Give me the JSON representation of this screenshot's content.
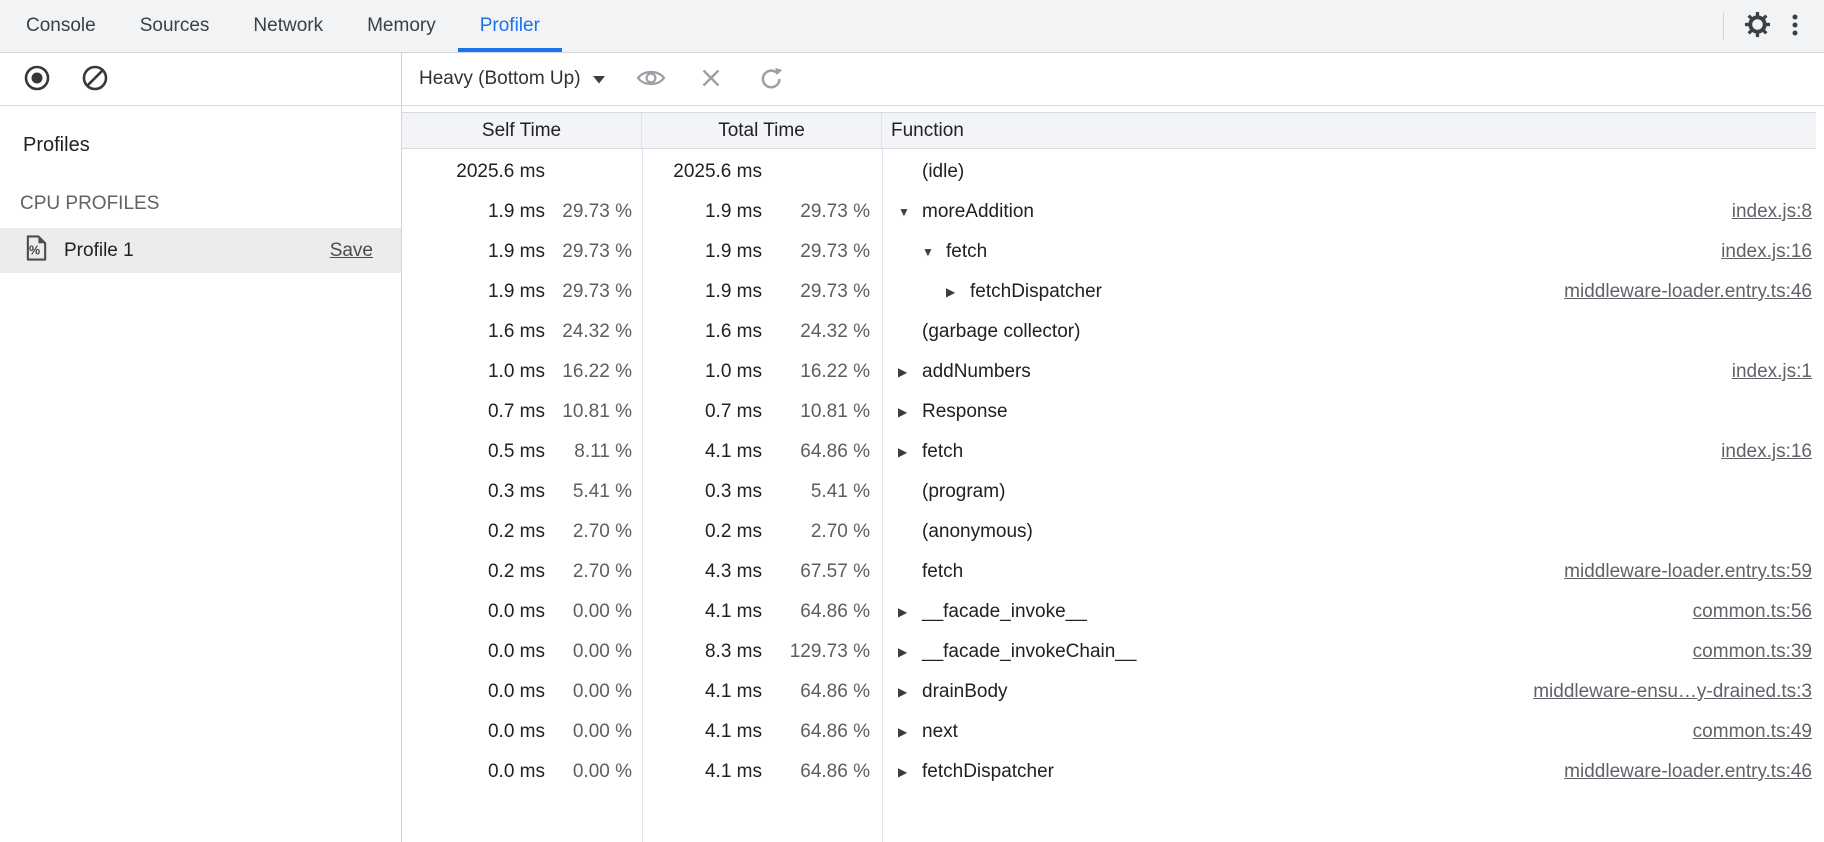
{
  "colors": {
    "accent": "#1a73e8",
    "tabbar_background": "#f1f3f4",
    "selected_profile_background": "#ececec",
    "secondary_text": "#5f6368"
  },
  "header": {
    "tabs": [
      {
        "label": "Console",
        "active": false
      },
      {
        "label": "Sources",
        "active": false
      },
      {
        "label": "Network",
        "active": false
      },
      {
        "label": "Memory",
        "active": false
      },
      {
        "label": "Profiler",
        "active": true
      }
    ],
    "icons": [
      "gear-icon",
      "kebab-menu-icon"
    ]
  },
  "sidebar": {
    "toolbar_icons": [
      "record-icon",
      "clear-icon"
    ],
    "profiles_label": "Profiles",
    "cpu_profiles_label": "CPU PROFILES",
    "profiles": [
      {
        "name": "Profile 1",
        "action_label": "Save",
        "selected": true
      }
    ]
  },
  "toolbar": {
    "view_selector_value": "Heavy (Bottom Up)",
    "icons": [
      "eye-icon",
      "close-icon",
      "refresh-icon"
    ]
  },
  "grid": {
    "columns": [
      "Self Time",
      "Total Time",
      "Function"
    ],
    "rows": [
      {
        "self_ms": "2025.6 ms",
        "self_pct": "",
        "total_ms": "2025.6 ms",
        "total_pct": "",
        "fn": "(idle)",
        "arrow": "none",
        "indent": 0,
        "link": ""
      },
      {
        "self_ms": "1.9 ms",
        "self_pct": "29.73 %",
        "total_ms": "1.9 ms",
        "total_pct": "29.73 %",
        "fn": "moreAddition",
        "arrow": "down",
        "indent": 0,
        "link": "index.js:8"
      },
      {
        "self_ms": "1.9 ms",
        "self_pct": "29.73 %",
        "total_ms": "1.9 ms",
        "total_pct": "29.73 %",
        "fn": "fetch",
        "arrow": "down",
        "indent": 1,
        "link": "index.js:16"
      },
      {
        "self_ms": "1.9 ms",
        "self_pct": "29.73 %",
        "total_ms": "1.9 ms",
        "total_pct": "29.73 %",
        "fn": "fetchDispatcher",
        "arrow": "right",
        "indent": 2,
        "link": "middleware-loader.entry.ts:46"
      },
      {
        "self_ms": "1.6 ms",
        "self_pct": "24.32 %",
        "total_ms": "1.6 ms",
        "total_pct": "24.32 %",
        "fn": "(garbage collector)",
        "arrow": "none",
        "indent": 0,
        "link": ""
      },
      {
        "self_ms": "1.0 ms",
        "self_pct": "16.22 %",
        "total_ms": "1.0 ms",
        "total_pct": "16.22 %",
        "fn": "addNumbers",
        "arrow": "right",
        "indent": 0,
        "link": "index.js:1"
      },
      {
        "self_ms": "0.7 ms",
        "self_pct": "10.81 %",
        "total_ms": "0.7 ms",
        "total_pct": "10.81 %",
        "fn": "Response",
        "arrow": "right",
        "indent": 0,
        "link": ""
      },
      {
        "self_ms": "0.5 ms",
        "self_pct": "8.11 %",
        "total_ms": "4.1 ms",
        "total_pct": "64.86 %",
        "fn": "fetch",
        "arrow": "right",
        "indent": 0,
        "link": "index.js:16"
      },
      {
        "self_ms": "0.3 ms",
        "self_pct": "5.41 %",
        "total_ms": "0.3 ms",
        "total_pct": "5.41 %",
        "fn": "(program)",
        "arrow": "none",
        "indent": 0,
        "link": ""
      },
      {
        "self_ms": "0.2 ms",
        "self_pct": "2.70 %",
        "total_ms": "0.2 ms",
        "total_pct": "2.70 %",
        "fn": "(anonymous)",
        "arrow": "none",
        "indent": 0,
        "link": ""
      },
      {
        "self_ms": "0.2 ms",
        "self_pct": "2.70 %",
        "total_ms": "4.3 ms",
        "total_pct": "67.57 %",
        "fn": "fetch",
        "arrow": "none",
        "indent": 0,
        "link": "middleware-loader.entry.ts:59"
      },
      {
        "self_ms": "0.0 ms",
        "self_pct": "0.00 %",
        "total_ms": "4.1 ms",
        "total_pct": "64.86 %",
        "fn": "__facade_invoke__",
        "arrow": "right",
        "indent": 0,
        "link": "common.ts:56"
      },
      {
        "self_ms": "0.0 ms",
        "self_pct": "0.00 %",
        "total_ms": "8.3 ms",
        "total_pct": "129.73 %",
        "fn": "__facade_invokeChain__",
        "arrow": "right",
        "indent": 0,
        "link": "common.ts:39"
      },
      {
        "self_ms": "0.0 ms",
        "self_pct": "0.00 %",
        "total_ms": "4.1 ms",
        "total_pct": "64.86 %",
        "fn": "drainBody",
        "arrow": "right",
        "indent": 0,
        "link": "middleware-ensu…y-drained.ts:3"
      },
      {
        "self_ms": "0.0 ms",
        "self_pct": "0.00 %",
        "total_ms": "4.1 ms",
        "total_pct": "64.86 %",
        "fn": "next",
        "arrow": "right",
        "indent": 0,
        "link": "common.ts:49"
      },
      {
        "self_ms": "0.0 ms",
        "self_pct": "0.00 %",
        "total_ms": "4.1 ms",
        "total_pct": "64.86 %",
        "fn": "fetchDispatcher",
        "arrow": "right",
        "indent": 0,
        "link": "middleware-loader.entry.ts:46"
      }
    ]
  }
}
